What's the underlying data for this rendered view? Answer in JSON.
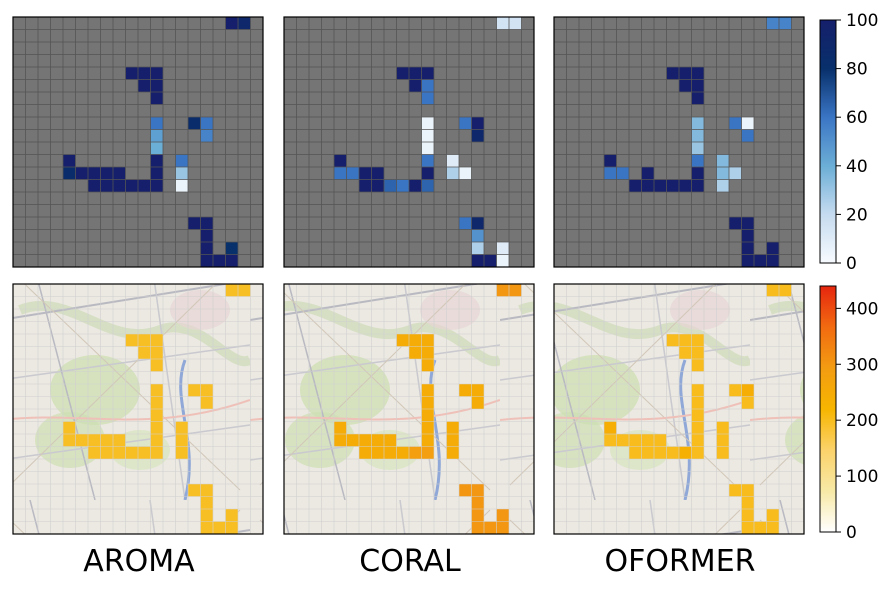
{
  "chart_data": {
    "type": "heatmap",
    "grid_size": 20,
    "panel_titles": [
      "AROMA",
      "CORAL",
      "OFORMER"
    ],
    "top_row": {
      "colormap": "Blues",
      "colormap_colors": [
        "#f7fbff",
        "#c6dbef",
        "#6baed6",
        "#3a75c4",
        "#08306b",
        "#151f6b"
      ],
      "background_color": "#757575",
      "colorbar": {
        "min": 0,
        "max": 100,
        "ticks": [
          "0",
          "20",
          "40",
          "60",
          "80",
          "100"
        ]
      },
      "panels": [
        {
          "name": "AROMA",
          "cells": [
            {
              "r": 0,
              "c": 17,
              "v": 100
            },
            {
              "r": 0,
              "c": 18,
              "v": 90
            },
            {
              "r": 4,
              "c": 9,
              "v": 100
            },
            {
              "r": 4,
              "c": 10,
              "v": 100
            },
            {
              "r": 4,
              "c": 11,
              "v": 100
            },
            {
              "r": 5,
              "c": 10,
              "v": 100
            },
            {
              "r": 5,
              "c": 11,
              "v": 100
            },
            {
              "r": 6,
              "c": 11,
              "v": 100
            },
            {
              "r": 8,
              "c": 11,
              "v": 60
            },
            {
              "r": 8,
              "c": 14,
              "v": 85
            },
            {
              "r": 8,
              "c": 15,
              "v": 60
            },
            {
              "r": 9,
              "c": 11,
              "v": 45
            },
            {
              "r": 9,
              "c": 15,
              "v": 55
            },
            {
              "r": 10,
              "c": 11,
              "v": 40
            },
            {
              "r": 11,
              "c": 4,
              "v": 100
            },
            {
              "r": 11,
              "c": 11,
              "v": 100
            },
            {
              "r": 11,
              "c": 13,
              "v": 60
            },
            {
              "r": 12,
              "c": 4,
              "v": 85
            },
            {
              "r": 12,
              "c": 5,
              "v": 100
            },
            {
              "r": 12,
              "c": 6,
              "v": 100
            },
            {
              "r": 12,
              "c": 7,
              "v": 100
            },
            {
              "r": 12,
              "c": 8,
              "v": 100
            },
            {
              "r": 12,
              "c": 11,
              "v": 100
            },
            {
              "r": 12,
              "c": 13,
              "v": 30
            },
            {
              "r": 13,
              "c": 6,
              "v": 100
            },
            {
              "r": 13,
              "c": 7,
              "v": 100
            },
            {
              "r": 13,
              "c": 8,
              "v": 100
            },
            {
              "r": 13,
              "c": 9,
              "v": 100
            },
            {
              "r": 13,
              "c": 10,
              "v": 100
            },
            {
              "r": 13,
              "c": 11,
              "v": 100
            },
            {
              "r": 13,
              "c": 13,
              "v": 5
            },
            {
              "r": 16,
              "c": 14,
              "v": 100
            },
            {
              "r": 16,
              "c": 15,
              "v": 100
            },
            {
              "r": 17,
              "c": 15,
              "v": 100
            },
            {
              "r": 18,
              "c": 15,
              "v": 100
            },
            {
              "r": 18,
              "c": 17,
              "v": 80
            },
            {
              "r": 19,
              "c": 15,
              "v": 100
            },
            {
              "r": 19,
              "c": 16,
              "v": 100
            },
            {
              "r": 19,
              "c": 17,
              "v": 100
            }
          ]
        },
        {
          "name": "CORAL",
          "cells": [
            {
              "r": 0,
              "c": 17,
              "v": 15
            },
            {
              "r": 0,
              "c": 18,
              "v": 15
            },
            {
              "r": 4,
              "c": 9,
              "v": 100
            },
            {
              "r": 4,
              "c": 10,
              "v": 100
            },
            {
              "r": 4,
              "c": 11,
              "v": 100
            },
            {
              "r": 5,
              "c": 10,
              "v": 100
            },
            {
              "r": 5,
              "c": 11,
              "v": 60
            },
            {
              "r": 6,
              "c": 11,
              "v": 60
            },
            {
              "r": 8,
              "c": 11,
              "v": 5
            },
            {
              "r": 8,
              "c": 14,
              "v": 60
            },
            {
              "r": 8,
              "c": 15,
              "v": 100
            },
            {
              "r": 9,
              "c": 11,
              "v": 5
            },
            {
              "r": 9,
              "c": 15,
              "v": 90
            },
            {
              "r": 10,
              "c": 11,
              "v": 5
            },
            {
              "r": 11,
              "c": 4,
              "v": 100
            },
            {
              "r": 11,
              "c": 11,
              "v": 60
            },
            {
              "r": 11,
              "c": 13,
              "v": 10
            },
            {
              "r": 12,
              "c": 4,
              "v": 60
            },
            {
              "r": 12,
              "c": 5,
              "v": 60
            },
            {
              "r": 12,
              "c": 6,
              "v": 100
            },
            {
              "r": 12,
              "c": 7,
              "v": 100
            },
            {
              "r": 12,
              "c": 11,
              "v": 100
            },
            {
              "r": 12,
              "c": 13,
              "v": 25
            },
            {
              "r": 12,
              "c": 14,
              "v": 5
            },
            {
              "r": 13,
              "c": 6,
              "v": 100
            },
            {
              "r": 13,
              "c": 7,
              "v": 100
            },
            {
              "r": 13,
              "c": 8,
              "v": 65
            },
            {
              "r": 13,
              "c": 9,
              "v": 60
            },
            {
              "r": 13,
              "c": 10,
              "v": 100
            },
            {
              "r": 13,
              "c": 11,
              "v": 65
            },
            {
              "r": 16,
              "c": 14,
              "v": 60
            },
            {
              "r": 16,
              "c": 15,
              "v": 90
            },
            {
              "r": 17,
              "c": 15,
              "v": 50
            },
            {
              "r": 18,
              "c": 15,
              "v": 25
            },
            {
              "r": 18,
              "c": 17,
              "v": 10
            },
            {
              "r": 19,
              "c": 15,
              "v": 100
            },
            {
              "r": 19,
              "c": 16,
              "v": 100
            },
            {
              "r": 19,
              "c": 17,
              "v": 5
            }
          ]
        },
        {
          "name": "OFORMER",
          "cells": [
            {
              "r": 0,
              "c": 17,
              "v": 55
            },
            {
              "r": 0,
              "c": 18,
              "v": 55
            },
            {
              "r": 4,
              "c": 9,
              "v": 100
            },
            {
              "r": 4,
              "c": 10,
              "v": 100
            },
            {
              "r": 4,
              "c": 11,
              "v": 100
            },
            {
              "r": 5,
              "c": 10,
              "v": 100
            },
            {
              "r": 5,
              "c": 11,
              "v": 100
            },
            {
              "r": 6,
              "c": 11,
              "v": 100
            },
            {
              "r": 8,
              "c": 11,
              "v": 35
            },
            {
              "r": 8,
              "c": 14,
              "v": 60
            },
            {
              "r": 8,
              "c": 15,
              "v": 5
            },
            {
              "r": 9,
              "c": 11,
              "v": 35
            },
            {
              "r": 9,
              "c": 15,
              "v": 60
            },
            {
              "r": 10,
              "c": 11,
              "v": 30
            },
            {
              "r": 11,
              "c": 4,
              "v": 100
            },
            {
              "r": 11,
              "c": 11,
              "v": 60
            },
            {
              "r": 11,
              "c": 13,
              "v": 35
            },
            {
              "r": 12,
              "c": 4,
              "v": 60
            },
            {
              "r": 12,
              "c": 5,
              "v": 60
            },
            {
              "r": 12,
              "c": 7,
              "v": 100
            },
            {
              "r": 12,
              "c": 11,
              "v": 100
            },
            {
              "r": 12,
              "c": 13,
              "v": 35
            },
            {
              "r": 12,
              "c": 14,
              "v": 25
            },
            {
              "r": 13,
              "c": 6,
              "v": 100
            },
            {
              "r": 13,
              "c": 7,
              "v": 100
            },
            {
              "r": 13,
              "c": 8,
              "v": 100
            },
            {
              "r": 13,
              "c": 9,
              "v": 100
            },
            {
              "r": 13,
              "c": 10,
              "v": 100
            },
            {
              "r": 13,
              "c": 11,
              "v": 100
            },
            {
              "r": 13,
              "c": 13,
              "v": 25
            },
            {
              "r": 16,
              "c": 14,
              "v": 100
            },
            {
              "r": 16,
              "c": 15,
              "v": 100
            },
            {
              "r": 17,
              "c": 15,
              "v": 100
            },
            {
              "r": 18,
              "c": 15,
              "v": 100
            },
            {
              "r": 18,
              "c": 17,
              "v": 100
            },
            {
              "r": 19,
              "c": 15,
              "v": 100
            },
            {
              "r": 19,
              "c": 16,
              "v": 100
            },
            {
              "r": 19,
              "c": 17,
              "v": 100
            }
          ]
        }
      ]
    },
    "bottom_row": {
      "colormap": "YlOrRd-like",
      "colormap_colors": [
        "#ffffff",
        "#f7e9a6",
        "#fbd26a",
        "#f7b500",
        "#f39c12",
        "#f26a10",
        "#e5260f"
      ],
      "background": "map",
      "colorbar": {
        "min": 0,
        "max": 440,
        "ticks": [
          "0",
          "100",
          "200",
          "300",
          "400"
        ]
      },
      "panels": [
        {
          "name": "AROMA",
          "uniform_value": 195,
          "overrides": []
        },
        {
          "name": "CORAL",
          "uniform_value": 245,
          "overrides": [
            {
              "r": 0,
              "c": 17,
              "v": 300
            },
            {
              "r": 0,
              "c": 18,
              "v": 300
            },
            {
              "r": 13,
              "c": 10,
              "v": 285
            },
            {
              "r": 13,
              "c": 11,
              "v": 285
            },
            {
              "r": 16,
              "c": 14,
              "v": 300
            },
            {
              "r": 16,
              "c": 15,
              "v": 300
            },
            {
              "r": 17,
              "c": 15,
              "v": 300
            },
            {
              "r": 18,
              "c": 15,
              "v": 300
            },
            {
              "r": 18,
              "c": 17,
              "v": 300
            },
            {
              "r": 19,
              "c": 15,
              "v": 300
            },
            {
              "r": 19,
              "c": 16,
              "v": 300
            },
            {
              "r": 19,
              "c": 17,
              "v": 300
            }
          ]
        },
        {
          "name": "OFORMER",
          "uniform_value": 200,
          "overrides": [
            {
              "r": 8,
              "c": 15,
              "v": 240
            },
            {
              "r": 11,
              "c": 4,
              "v": 240
            },
            {
              "r": 13,
              "c": 10,
              "v": 235
            }
          ]
        }
      ]
    }
  }
}
